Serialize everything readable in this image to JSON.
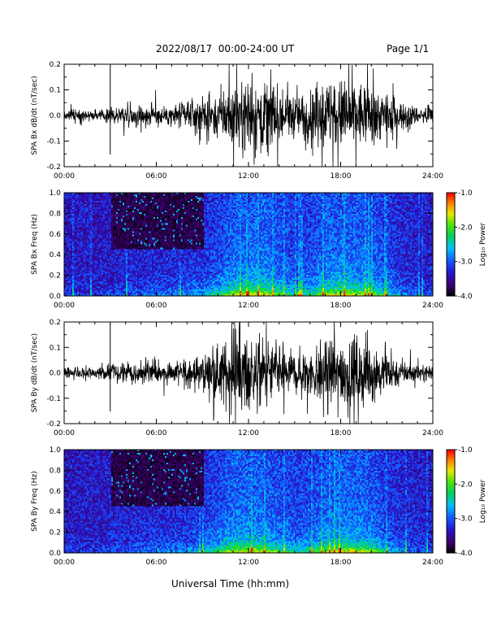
{
  "header": {
    "title": "2022/08/17  00:00-24:00 UT",
    "page": "Page 1/1"
  },
  "xaxis": {
    "label": "Universal Time (hh:mm)"
  },
  "colors": {
    "trace": "#000000",
    "background": "#ffffff"
  },
  "chart_data": [
    {
      "type": "line",
      "ylabel": "SPA Bx dB/dt (nT/sec)",
      "xlim": [
        "00:00",
        "24:00"
      ],
      "xticks": [
        "00:00",
        "06:00",
        "12:00",
        "18:00",
        "24:00"
      ],
      "ylim": [
        -0.2,
        0.2
      ],
      "yticks": [
        "-0.2",
        "-0.1",
        "0.0",
        "0.1",
        "0.2"
      ],
      "envelope_hours": [
        0,
        1,
        2,
        3,
        4,
        5,
        6,
        7,
        8,
        9,
        10,
        11,
        12,
        13,
        14,
        15,
        16,
        17,
        18,
        19,
        20,
        21,
        22,
        23,
        24
      ],
      "envelope_amplitude": [
        0.03,
        0.03,
        0.025,
        0.04,
        0.05,
        0.055,
        0.06,
        0.06,
        0.075,
        0.09,
        0.13,
        0.19,
        0.2,
        0.2,
        0.16,
        0.12,
        0.13,
        0.19,
        0.2,
        0.19,
        0.17,
        0.12,
        0.07,
        0.05,
        0.04
      ]
    },
    {
      "type": "heatmap",
      "ylabel": "SPA Bx Freq (Hz)",
      "colorbar_label": "Log₁₀ Power",
      "xlim": [
        "00:00",
        "24:00"
      ],
      "xticks": [
        "00:00",
        "06:00",
        "12:00",
        "18:00",
        "24:00"
      ],
      "ylim": [
        0.0,
        1.0
      ],
      "yticks": [
        "0.0",
        "0.2",
        "0.4",
        "0.6",
        "0.8",
        "1.0"
      ],
      "clim": [
        -4.0,
        -1.0
      ],
      "cticks": [
        "-4.0",
        "-3.0",
        "-2.0",
        "-1.0"
      ],
      "colormap": "rainbow"
    },
    {
      "type": "line",
      "ylabel": "SPA By dB/dt (nT/sec)",
      "xlim": [
        "00:00",
        "24:00"
      ],
      "xticks": [
        "00:00",
        "06:00",
        "12:00",
        "18:00",
        "24:00"
      ],
      "ylim": [
        -0.2,
        0.2
      ],
      "yticks": [
        "-0.2",
        "-0.1",
        "0.0",
        "0.1",
        "0.2"
      ],
      "envelope_hours": [
        0,
        1,
        2,
        3,
        4,
        5,
        6,
        7,
        8,
        9,
        10,
        11,
        12,
        13,
        14,
        15,
        16,
        17,
        18,
        19,
        20,
        21,
        22,
        23,
        24
      ],
      "envelope_amplitude": [
        0.03,
        0.035,
        0.03,
        0.045,
        0.05,
        0.06,
        0.065,
        0.07,
        0.08,
        0.1,
        0.14,
        0.2,
        0.2,
        0.19,
        0.15,
        0.12,
        0.14,
        0.18,
        0.2,
        0.2,
        0.17,
        0.11,
        0.07,
        0.05,
        0.04
      ]
    },
    {
      "type": "heatmap",
      "ylabel": "SPA By Freq (Hz)",
      "colorbar_label": "Log₁₀ Power",
      "xlim": [
        "00:00",
        "24:00"
      ],
      "xticks": [
        "00:00",
        "06:00",
        "12:00",
        "18:00",
        "24:00"
      ],
      "ylim": [
        0.0,
        1.0
      ],
      "yticks": [
        "0.0",
        "0.2",
        "0.4",
        "0.6",
        "0.8",
        "1.0"
      ],
      "clim": [
        -4.0,
        -1.0
      ],
      "cticks": [
        "-4.0",
        "-3.0",
        "-2.0",
        "-1.0"
      ],
      "colormap": "rainbow"
    }
  ]
}
